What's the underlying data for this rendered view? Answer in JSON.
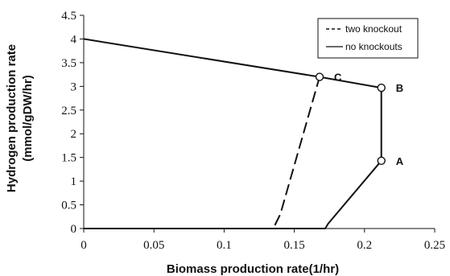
{
  "chart_data": {
    "type": "line",
    "xlabel": "Biomass production rate(1/hr)",
    "ylabel_lines": [
      "Hydrogen production rate",
      "(mmol/gDW/hr)"
    ],
    "xlim": [
      0,
      0.25
    ],
    "ylim": [
      0,
      4.5
    ],
    "x_ticks": [
      0,
      0.05,
      0.1,
      0.15,
      0.2,
      0.25
    ],
    "x_tick_labels": [
      "0",
      "0.05",
      "0.1",
      "0.15",
      "0.2",
      "0.25"
    ],
    "y_ticks": [
      0,
      0.5,
      1,
      1.5,
      2,
      2.5,
      3,
      3.5,
      4,
      4.5
    ],
    "y_tick_labels": [
      "0",
      "0.5",
      "1",
      "1.5",
      "2",
      "2.5",
      "3",
      "3.5",
      "4",
      "4.5"
    ],
    "grid": false,
    "legend_position": "top-right",
    "series": [
      {
        "name": "two knockout",
        "style": "dashed",
        "color": "#111111",
        "points": [
          [
            0,
            0
          ],
          [
            0.135,
            0
          ],
          [
            0.14,
            0.3
          ],
          [
            0.168,
            3.2
          ]
        ]
      },
      {
        "name": "no knockouts",
        "style": "solid",
        "color": "#111111",
        "points": [
          [
            0,
            4.0
          ],
          [
            0.168,
            3.2
          ],
          [
            0.212,
            2.97
          ],
          [
            0.212,
            1.43
          ],
          [
            0.174,
            0.1
          ],
          [
            0.172,
            0
          ],
          [
            0,
            0
          ]
        ]
      }
    ],
    "annotations": [
      {
        "label": "C",
        "x": 0.168,
        "y": 3.2
      },
      {
        "label": "B",
        "x": 0.212,
        "y": 2.97
      },
      {
        "label": "A",
        "x": 0.212,
        "y": 1.43
      }
    ]
  }
}
